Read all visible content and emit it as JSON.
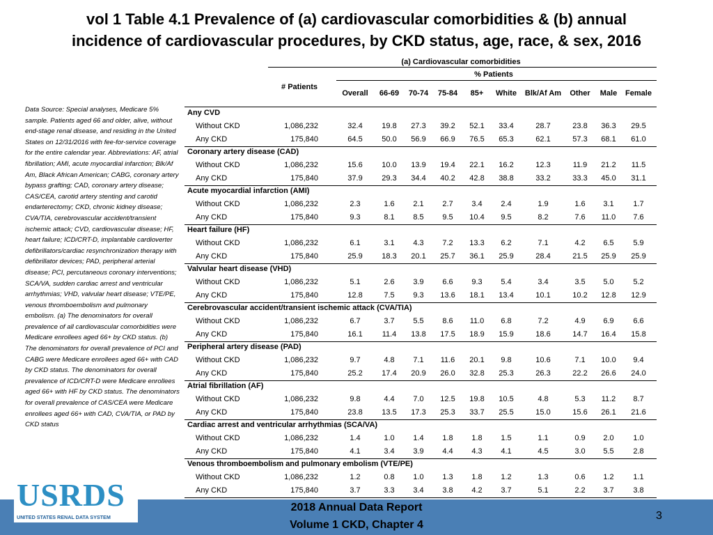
{
  "header": {
    "title": "vol 1 Table 4.1 Prevalence of (a) cardiovascular comorbidities & (b) annual incidence of cardiovascular procedures, by CKD status, age, race, & sex, 2016"
  },
  "note": "Data Source: Special analyses, Medicare 5% sample. Patients aged 66 and older, alive, without end-stage renal disease, and residing in the United States on 12/31/2016 with fee-for-service coverage for the entire calendar year. Abbreviations: AF, atrial fibrillation; AMI, acute myocardial infarction; Blk/Af Am, Black African American; CABG, coronary artery bypass grafting; CAD, coronary artery disease; CAS/CEA, carotid artery stenting and carotid endarterectomy; CKD, chronic kidney disease; CVA/TIA, cerebrovascular accident/transient ischemic attack; CVD, cardiovascular disease; HF, heart failure; ICD/CRT-D, implantable cardioverter defibrillators/cardiac resynchronization therapy with defibrillator devices; PAD, peripheral arterial disease; PCI, percutaneous coronary interventions; SCA/VA, sudden cardiac arrest and ventricular arrhythmias; VHD, valvular heart disease; VTE/PE, venous thromboembolism and pulmonary embolism. (a) The denominators for overall prevalence of all cardiovascular comorbidities were Medicare enrollees aged 66+ by CKD status. (b) The denominators for overall prevalence of PCI and CABG were Medicare enrollees aged 66+ with CAD by CKD status. The denominators for overall prevalence of ICD/CRT-D were Medicare enrollees aged 66+ with HF by CKD status. The denominators for overall prevalence of CAS/CEA were Medicare enrollees aged 66+ with CAD, CVA/TIA, or PAD by CKD status",
  "table": {
    "group_header": "(a) Cardiovascular comorbidities",
    "sub_header": "% Patients",
    "patients_header": "# Patients",
    "columns": [
      "Overall",
      "66-69",
      "70-74",
      "75-84",
      "85+",
      "White",
      "Blk/Af Am",
      "Other",
      "Male",
      "Female"
    ],
    "sections": [
      {
        "title": "Any CVD",
        "rows": [
          {
            "label": "Without CKD",
            "patients": "1,086,232",
            "values": [
              "32.4",
              "19.8",
              "27.3",
              "39.2",
              "52.1",
              "33.4",
              "28.7",
              "23.8",
              "36.3",
              "29.5"
            ]
          },
          {
            "label": "Any CKD",
            "patients": "175,840",
            "values": [
              "64.5",
              "50.0",
              "56.9",
              "66.9",
              "76.5",
              "65.3",
              "62.1",
              "57.3",
              "68.1",
              "61.0"
            ]
          }
        ]
      },
      {
        "title": "Coronary artery disease (CAD)",
        "rows": [
          {
            "label": "Without CKD",
            "patients": "1,086,232",
            "values": [
              "15.6",
              "10.0",
              "13.9",
              "19.4",
              "22.1",
              "16.2",
              "12.3",
              "11.9",
              "21.2",
              "11.5"
            ]
          },
          {
            "label": "Any CKD",
            "patients": "175,840",
            "values": [
              "37.9",
              "29.3",
              "34.4",
              "40.2",
              "42.8",
              "38.8",
              "33.2",
              "33.3",
              "45.0",
              "31.1"
            ]
          }
        ]
      },
      {
        "title": "Acute myocardial infarction (AMI)",
        "rows": [
          {
            "label": "Without CKD",
            "patients": "1,086,232",
            "values": [
              "2.3",
              "1.6",
              "2.1",
              "2.7",
              "3.4",
              "2.4",
              "1.9",
              "1.6",
              "3.1",
              "1.7"
            ]
          },
          {
            "label": "Any CKD",
            "patients": "175,840",
            "values": [
              "9.3",
              "8.1",
              "8.5",
              "9.5",
              "10.4",
              "9.5",
              "8.2",
              "7.6",
              "11.0",
              "7.6"
            ]
          }
        ]
      },
      {
        "title": "Heart failure (HF)",
        "rows": [
          {
            "label": "Without CKD",
            "patients": "1,086,232",
            "values": [
              "6.1",
              "3.1",
              "4.3",
              "7.2",
              "13.3",
              "6.2",
              "7.1",
              "4.2",
              "6.5",
              "5.9"
            ]
          },
          {
            "label": "Any CKD",
            "patients": "175,840",
            "values": [
              "25.9",
              "18.3",
              "20.1",
              "25.7",
              "36.1",
              "25.9",
              "28.4",
              "21.5",
              "25.9",
              "25.9"
            ]
          }
        ]
      },
      {
        "title": "Valvular heart disease (VHD)",
        "rows": [
          {
            "label": "Without CKD",
            "patients": "1,086,232",
            "values": [
              "5.1",
              "2.6",
              "3.9",
              "6.6",
              "9.3",
              "5.4",
              "3.4",
              "3.5",
              "5.0",
              "5.2"
            ]
          },
          {
            "label": "Any CKD",
            "patients": "175,840",
            "values": [
              "12.8",
              "7.5",
              "9.3",
              "13.6",
              "18.1",
              "13.4",
              "10.1",
              "10.2",
              "12.8",
              "12.9"
            ]
          }
        ]
      },
      {
        "title": "Cerebrovascular accident/transient ischemic attack (CVA/TIA)",
        "rows": [
          {
            "label": "Without CKD",
            "patients": "1,086,232",
            "values": [
              "6.7",
              "3.7",
              "5.5",
              "8.6",
              "11.0",
              "6.8",
              "7.2",
              "4.9",
              "6.9",
              "6.6"
            ]
          },
          {
            "label": "Any CKD",
            "patients": "175,840",
            "values": [
              "16.1",
              "11.4",
              "13.8",
              "17.5",
              "18.9",
              "15.9",
              "18.6",
              "14.7",
              "16.4",
              "15.8"
            ]
          }
        ]
      },
      {
        "title": "Peripheral artery disease (PAD)",
        "rows": [
          {
            "label": "Without CKD",
            "patients": "1,086,232",
            "values": [
              "9.7",
              "4.8",
              "7.1",
              "11.6",
              "20.1",
              "9.8",
              "10.6",
              "7.1",
              "10.0",
              "9.4"
            ]
          },
          {
            "label": "Any CKD",
            "patients": "175,840",
            "values": [
              "25.2",
              "17.4",
              "20.9",
              "26.0",
              "32.8",
              "25.3",
              "26.3",
              "22.2",
              "26.6",
              "24.0"
            ]
          }
        ]
      },
      {
        "title": "Atrial fibrillation (AF)",
        "rows": [
          {
            "label": "Without CKD",
            "patients": "1,086,232",
            "values": [
              "9.8",
              "4.4",
              "7.0",
              "12.5",
              "19.8",
              "10.5",
              "4.8",
              "5.3",
              "11.2",
              "8.7"
            ]
          },
          {
            "label": "Any CKD",
            "patients": "175,840",
            "values": [
              "23.8",
              "13.5",
              "17.3",
              "25.3",
              "33.7",
              "25.5",
              "15.0",
              "15.6",
              "26.1",
              "21.6"
            ]
          }
        ]
      },
      {
        "title": "Cardiac arrest and ventricular arrhythmias (SCA/VA)",
        "rows": [
          {
            "label": "Without CKD",
            "patients": "1,086,232",
            "values": [
              "1.4",
              "1.0",
              "1.4",
              "1.8",
              "1.8",
              "1.5",
              "1.1",
              "0.9",
              "2.0",
              "1.0"
            ]
          },
          {
            "label": "Any CKD",
            "patients": "175,840",
            "values": [
              "4.1",
              "3.4",
              "3.9",
              "4.4",
              "4.3",
              "4.1",
              "4.5",
              "3.0",
              "5.5",
              "2.8"
            ]
          }
        ]
      },
      {
        "title": "Venous thromboembolism and pulmonary embolism (VTE/PE)",
        "rows": [
          {
            "label": "Without CKD",
            "patients": "1,086,232",
            "values": [
              "1.2",
              "0.8",
              "1.0",
              "1.3",
              "1.8",
              "1.2",
              "1.3",
              "0.6",
              "1.2",
              "1.1"
            ]
          },
          {
            "label": "Any CKD",
            "patients": "175,840",
            "values": [
              "3.7",
              "3.3",
              "3.4",
              "3.8",
              "4.2",
              "3.7",
              "5.1",
              "2.2",
              "3.7",
              "3.8"
            ]
          }
        ]
      }
    ]
  },
  "footer": {
    "line1": "2018 Annual Data Report",
    "line2": "Volume 1 CKD, Chapter 4",
    "page": "3",
    "logo": "USRDS",
    "logo_sub": "UNITED STATES RENAL DATA SYSTEM"
  }
}
